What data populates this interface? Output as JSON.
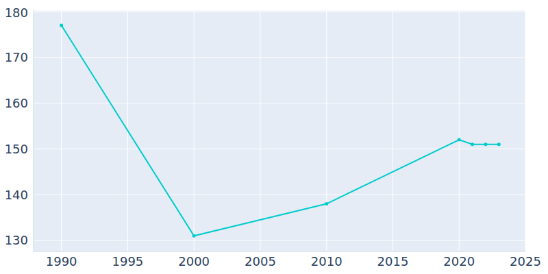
{
  "chart_data": {
    "type": "line",
    "x": [
      1990,
      2000,
      2010,
      2020,
      2021,
      2022,
      2023
    ],
    "values": [
      177,
      131,
      138,
      152,
      151,
      151,
      151
    ],
    "color": "#00cccc",
    "marker": "circle",
    "xlim": [
      1987.9,
      2025
    ],
    "xticks": [
      1990,
      1995,
      2000,
      2005,
      2010,
      2015,
      2020,
      2025
    ],
    "ylim": [
      127.6,
      180.3
    ],
    "yticks": [
      130,
      140,
      150,
      160,
      170,
      180
    ],
    "grid": true
  }
}
